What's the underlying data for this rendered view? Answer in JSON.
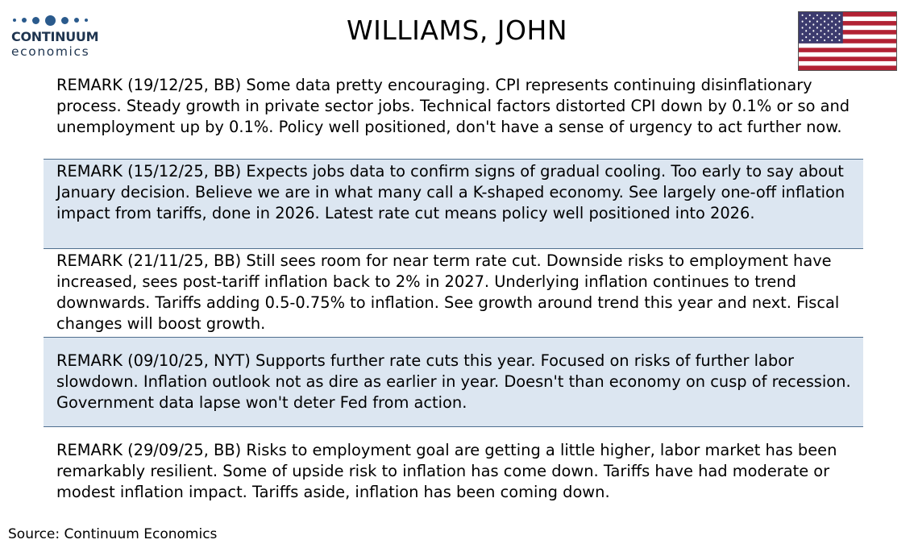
{
  "logo": {
    "brand": "CONTINUUM",
    "sub": "economics"
  },
  "title": "WILLIAMS, JOHN",
  "flag_icon": "us-flag-icon",
  "colors": {
    "shade": "#dce6f1",
    "divider": "#4f6f8f",
    "flag_red": "#b22234",
    "flag_blue": "#3c3b6e"
  },
  "remarks": [
    {
      "text": "REMARK (19/12/25, BB) Some data pretty encouraging. CPI represents continuing disinflationary process. Steady growth in private sector jobs. Technical factors distorted CPI down by 0.1% or so and unemployment up by 0.1%. Policy well positioned, don't have a sense of urgency to act further now."
    },
    {
      "text": "REMARK (15/12/25, BB) Expects jobs data to confirm signs of gradual cooling. Too early to say about January decision. Believe we are in what many call a K-shaped economy. See largely one-off inflation impact from tariffs, done in 2026. Latest rate cut means policy well positioned into 2026."
    },
    {
      "text": "REMARK (21/11/25, BB) Still sees room for near term rate cut. Downside risks to employment have increased, sees post-tariff inflation back to 2% in 2027.  Underlying inflation continues to trend downwards. Tariffs adding 0.5-0.75% to inflation. See growth around trend this year and next. Fiscal changes will boost growth."
    },
    {
      "text": "REMARK (09/10/25, NYT) Supports further rate cuts this year.  Focused on risks of further labor slowdown. Inflation outlook not as dire as earlier in year. Doesn't than economy on cusp of recession. Government data lapse won't deter Fed from action."
    },
    {
      "text": "REMARK (29/09/25, BB) Risks to employment goal are getting a little higher, labor market has been remarkably resilient. Some of upside risk to inflation has come down. Tariffs have had moderate or modest inflation impact. Tariffs aside, inflation has been coming down."
    }
  ],
  "source": "Source: Continuum Economics"
}
